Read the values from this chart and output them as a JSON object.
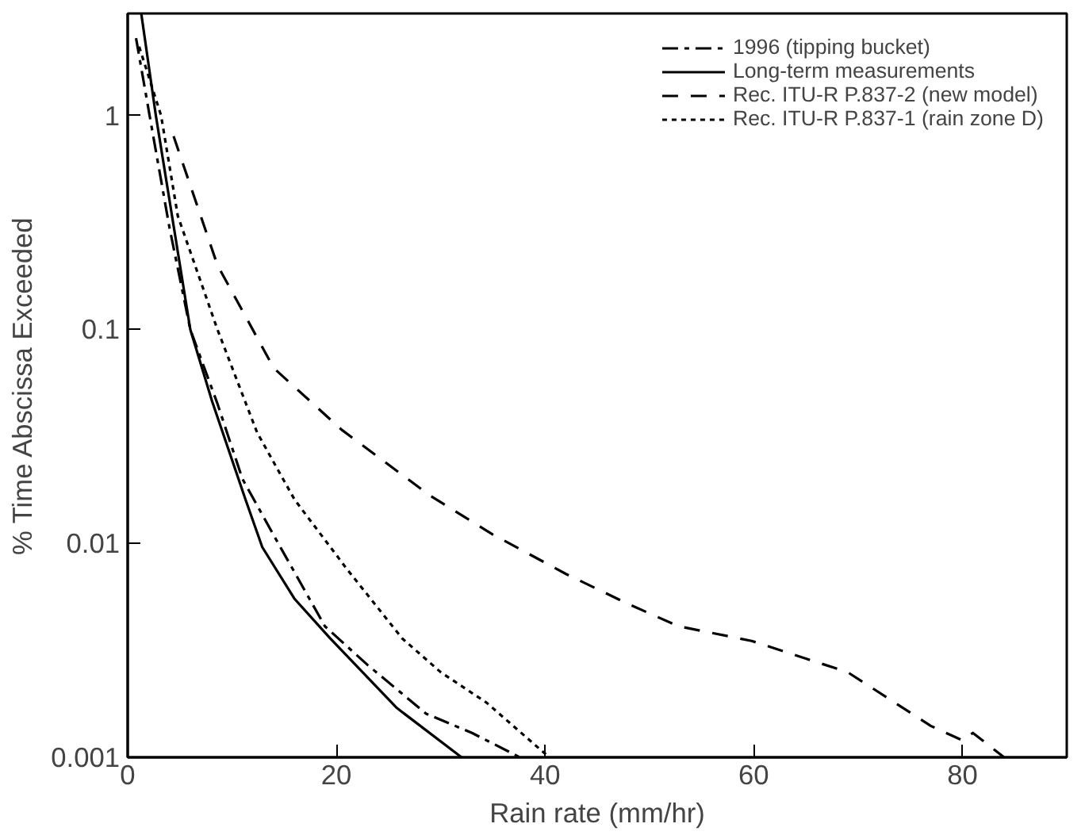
{
  "chart_data": {
    "type": "line",
    "xlabel": "Rain rate (mm/hr)",
    "ylabel": "% Time Abscissa Exceeded",
    "log": "y",
    "xlim": [
      0,
      90
    ],
    "ylim": [
      0.001,
      3
    ],
    "xticks": [
      0,
      20,
      40,
      60,
      80
    ],
    "yticks": [
      0.001,
      0.01,
      0.1,
      1
    ],
    "grid": false,
    "legend": "top right",
    "marker": "none",
    "series": [
      {
        "name": "1996 (tipping bucket)",
        "color": "#000000",
        "line_style": "dashdot",
        "x": [
          0.8,
          2.1,
          4,
          6,
          8.6,
          11,
          14,
          18.9,
          23,
          28.6,
          33,
          37.6
        ],
        "values": [
          2.3,
          1,
          0.3,
          0.1,
          0.045,
          0.02,
          0.0109,
          0.0041,
          0.0027,
          0.0016,
          0.0013,
          0.001
        ]
      },
      {
        "name": "Long-term measurements",
        "color": "#000000",
        "line_style": "solid",
        "x": [
          1.3,
          2.7,
          6,
          8.1,
          11.3,
          12.9,
          16,
          19.4,
          25.8,
          32
        ],
        "values": [
          3,
          1,
          0.1,
          0.046,
          0.016,
          0.0096,
          0.0055,
          0.0036,
          0.0017,
          0.001
        ]
      },
      {
        "name": "Rec. ITU-R P.837-2 (new model)",
        "color": "#000000",
        "line_style": "dashed",
        "x": [
          4.4,
          8.6,
          14,
          20.5,
          29,
          35,
          42,
          48,
          52.8,
          59.8,
          69,
          77,
          80,
          81,
          84
        ],
        "values": [
          0.8,
          0.2,
          0.066,
          0.034,
          0.0167,
          0.011,
          0.0072,
          0.0052,
          0.0041,
          0.0035,
          0.0025,
          0.0014,
          0.0012,
          0.0013,
          0.001
        ]
      },
      {
        "name": "Rec. ITU-R P.837-1 (rain zone D)",
        "color": "#000000",
        "line_style": "dotted",
        "x": [
          1.1,
          3.2,
          4.8,
          8.6,
          12.4,
          16,
          21,
          26.3,
          30,
          34.4,
          40.4
        ],
        "values": [
          2.1,
          1,
          0.34,
          0.1,
          0.033,
          0.016,
          0.0076,
          0.0036,
          0.0025,
          0.0018,
          0.001
        ]
      }
    ]
  }
}
